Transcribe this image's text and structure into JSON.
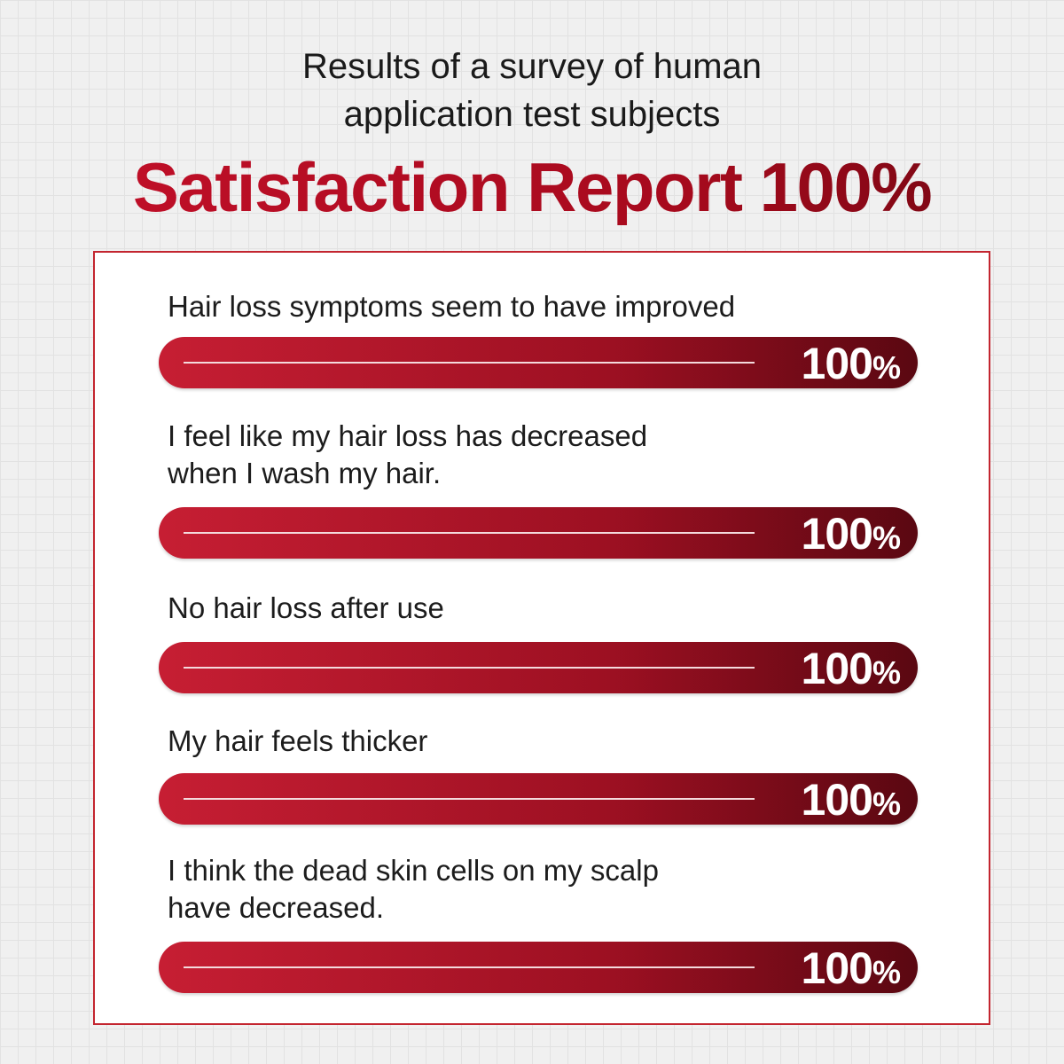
{
  "header": {
    "subtitle_lines": [
      "Results of a survey of human",
      "application test subjects"
    ],
    "title": "Satisfaction Report 100%"
  },
  "colors": {
    "accent": "#b00c1e",
    "bar_start": "#c4152b",
    "bar_end": "#5e0812",
    "panel_border": "#c3252f"
  },
  "chart_data": {
    "type": "bar",
    "orientation": "horizontal",
    "categories": [
      "Hair loss symptoms seem to have improved",
      "I feel like my hair loss has decreased when I wash my hair.",
      "No hair loss after use",
      "My hair feels thicker",
      "I think the dead skin cells on my scalp have decreased."
    ],
    "values": [
      100,
      100,
      100,
      100,
      100
    ],
    "xlim": [
      0,
      100
    ],
    "unit": "%",
    "title": "Satisfaction Report 100%"
  },
  "items": [
    {
      "label_lines": [
        "Hair loss symptoms seem to have improved"
      ],
      "value": "100",
      "unit": "%"
    },
    {
      "label_lines": [
        "I feel like my hair loss has decreased",
        "when I wash my hair."
      ],
      "value": "100",
      "unit": "%"
    },
    {
      "label_lines": [
        "No hair loss after use"
      ],
      "value": "100",
      "unit": "%"
    },
    {
      "label_lines": [
        "My hair feels thicker"
      ],
      "value": "100",
      "unit": "%"
    },
    {
      "label_lines": [
        "I think the dead skin cells on my scalp",
        "have decreased."
      ],
      "value": "100",
      "unit": "%"
    }
  ]
}
